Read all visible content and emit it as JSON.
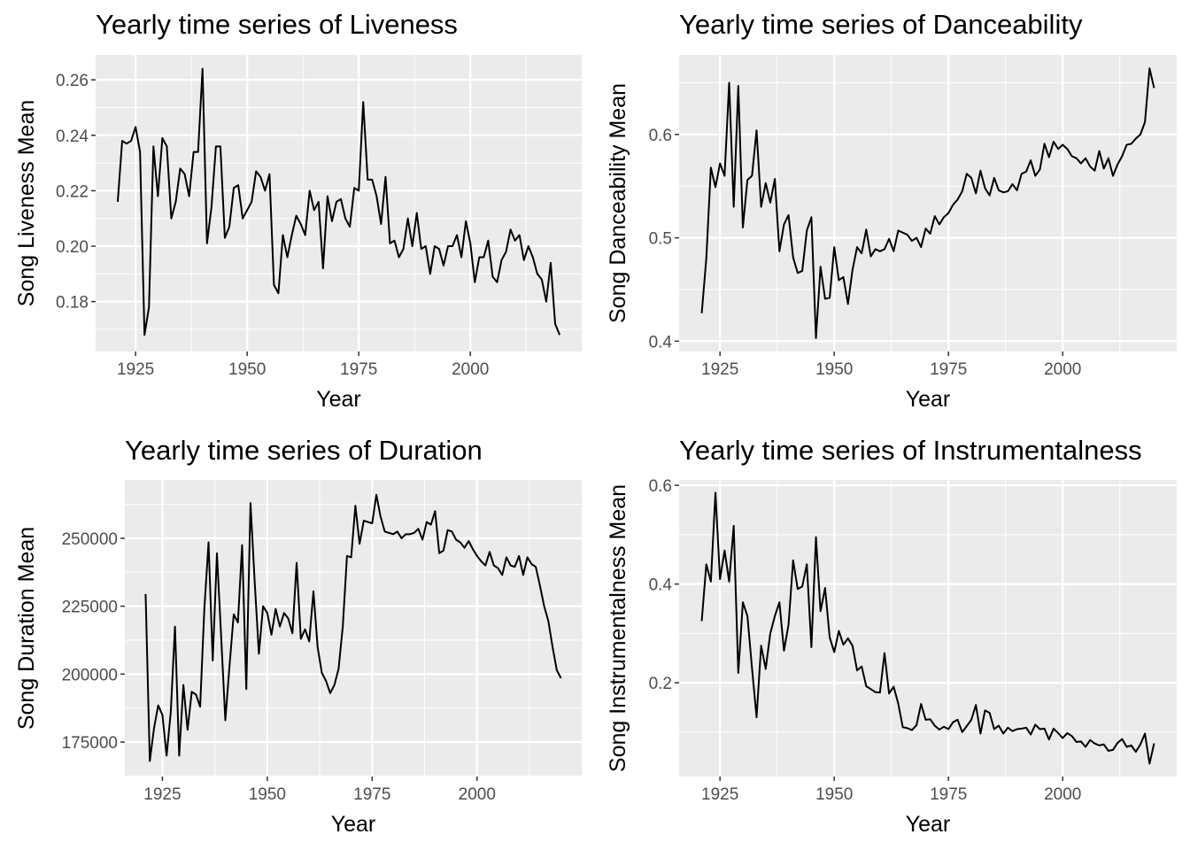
{
  "chart_data": [
    {
      "type": "line",
      "title": "Yearly time series of Liveness",
      "xlabel": "Year",
      "ylabel": "Song Liveness Mean",
      "color": "#000000",
      "grid": true,
      "x": [
        1921,
        1922,
        1923,
        1924,
        1925,
        1926,
        1927,
        1928,
        1929,
        1930,
        1931,
        1932,
        1933,
        1934,
        1935,
        1936,
        1937,
        1938,
        1939,
        1940,
        1941,
        1942,
        1943,
        1944,
        1945,
        1946,
        1947,
        1948,
        1949,
        1950,
        1951,
        1952,
        1953,
        1954,
        1955,
        1956,
        1957,
        1958,
        1959,
        1960,
        1961,
        1962,
        1963,
        1964,
        1965,
        1966,
        1967,
        1968,
        1969,
        1970,
        1971,
        1972,
        1973,
        1974,
        1975,
        1976,
        1977,
        1978,
        1979,
        1980,
        1981,
        1982,
        1983,
        1984,
        1985,
        1986,
        1987,
        1988,
        1989,
        1990,
        1991,
        1992,
        1993,
        1994,
        1995,
        1996,
        1997,
        1998,
        1999,
        2000,
        2001,
        2002,
        2003,
        2004,
        2005,
        2006,
        2007,
        2008,
        2009,
        2010,
        2011,
        2012,
        2013,
        2014,
        2015,
        2016,
        2017,
        2018,
        2019,
        2020
      ],
      "values": [
        0.216,
        0.238,
        0.237,
        0.238,
        0.243,
        0.234,
        0.168,
        0.178,
        0.236,
        0.218,
        0.239,
        0.236,
        0.21,
        0.216,
        0.228,
        0.226,
        0.218,
        0.234,
        0.234,
        0.264,
        0.201,
        0.214,
        0.236,
        0.236,
        0.203,
        0.207,
        0.221,
        0.222,
        0.21,
        0.213,
        0.216,
        0.227,
        0.225,
        0.22,
        0.226,
        0.186,
        0.183,
        0.204,
        0.196,
        0.204,
        0.211,
        0.208,
        0.204,
        0.22,
        0.213,
        0.216,
        0.192,
        0.218,
        0.209,
        0.216,
        0.217,
        0.21,
        0.207,
        0.221,
        0.22,
        0.252,
        0.224,
        0.224,
        0.218,
        0.208,
        0.225,
        0.201,
        0.202,
        0.196,
        0.199,
        0.21,
        0.2,
        0.212,
        0.199,
        0.2,
        0.19,
        0.2,
        0.199,
        0.193,
        0.2,
        0.2,
        0.204,
        0.196,
        0.209,
        0.201,
        0.187,
        0.196,
        0.196,
        0.202,
        0.189,
        0.187,
        0.195,
        0.198,
        0.206,
        0.202,
        0.204,
        0.195,
        0.2,
        0.196,
        0.19,
        0.188,
        0.18,
        0.194,
        0.172,
        0.168
      ],
      "xlim": [
        1916.05,
        2024.95
      ],
      "xticks": [
        1925,
        1950,
        1975,
        2000
      ],
      "ylim": [
        0.162,
        0.269
      ],
      "yticks": [
        0.18,
        {
          "value": 0.2,
          "label": "0.20"
        },
        0.22,
        0.24,
        0.26
      ]
    },
    {
      "type": "line",
      "title": "Yearly time series of Danceability",
      "xlabel": "Year",
      "ylabel": "Song Danceability Mean",
      "color": "#000000",
      "grid": true,
      "x": [
        1921,
        1922,
        1923,
        1924,
        1925,
        1926,
        1927,
        1928,
        1929,
        1930,
        1931,
        1932,
        1933,
        1934,
        1935,
        1936,
        1937,
        1938,
        1939,
        1940,
        1941,
        1942,
        1943,
        1944,
        1945,
        1946,
        1947,
        1948,
        1949,
        1950,
        1951,
        1952,
        1953,
        1954,
        1955,
        1956,
        1957,
        1958,
        1959,
        1960,
        1961,
        1962,
        1963,
        1964,
        1965,
        1966,
        1967,
        1968,
        1969,
        1970,
        1971,
        1972,
        1973,
        1974,
        1975,
        1976,
        1977,
        1978,
        1979,
        1980,
        1981,
        1982,
        1983,
        1984,
        1985,
        1986,
        1987,
        1988,
        1989,
        1990,
        1991,
        1992,
        1993,
        1994,
        1995,
        1996,
        1997,
        1998,
        1999,
        2000,
        2001,
        2002,
        2003,
        2004,
        2005,
        2006,
        2007,
        2008,
        2009,
        2010,
        2011,
        2012,
        2013,
        2014,
        2015,
        2016,
        2017,
        2018,
        2019,
        2020
      ],
      "values": [
        0.427,
        0.48,
        0.568,
        0.549,
        0.572,
        0.56,
        0.65,
        0.53,
        0.647,
        0.51,
        0.556,
        0.56,
        0.604,
        0.53,
        0.553,
        0.534,
        0.557,
        0.487,
        0.513,
        0.522,
        0.481,
        0.466,
        0.468,
        0.507,
        0.52,
        0.403,
        0.472,
        0.441,
        0.442,
        0.491,
        0.459,
        0.462,
        0.436,
        0.469,
        0.491,
        0.485,
        0.508,
        0.482,
        0.489,
        0.487,
        0.489,
        0.499,
        0.487,
        0.507,
        0.505,
        0.503,
        0.497,
        0.5,
        0.491,
        0.509,
        0.504,
        0.521,
        0.513,
        0.52,
        0.524,
        0.532,
        0.537,
        0.545,
        0.562,
        0.558,
        0.543,
        0.565,
        0.548,
        0.541,
        0.558,
        0.546,
        0.544,
        0.545,
        0.552,
        0.546,
        0.562,
        0.564,
        0.575,
        0.56,
        0.566,
        0.591,
        0.578,
        0.593,
        0.586,
        0.59,
        0.586,
        0.579,
        0.577,
        0.572,
        0.577,
        0.569,
        0.565,
        0.584,
        0.567,
        0.577,
        0.56,
        0.571,
        0.579,
        0.59,
        0.591,
        0.596,
        0.6,
        0.612,
        0.664,
        0.645
      ],
      "xlim": [
        1916.05,
        2024.95
      ],
      "xticks": [
        1925,
        1950,
        1975,
        2000
      ],
      "ylim": [
        0.39,
        0.677
      ],
      "yticks": [
        0.4,
        0.5,
        0.6
      ]
    },
    {
      "type": "line",
      "title": "Yearly time series of Duration",
      "xlabel": "Year",
      "ylabel": "Song Duration Mean",
      "color": "#000000",
      "grid": true,
      "x": [
        1921,
        1922,
        1923,
        1924,
        1925,
        1926,
        1927,
        1928,
        1929,
        1930,
        1931,
        1932,
        1933,
        1934,
        1935,
        1936,
        1937,
        1938,
        1939,
        1940,
        1941,
        1942,
        1943,
        1944,
        1945,
        1946,
        1947,
        1948,
        1949,
        1950,
        1951,
        1952,
        1953,
        1954,
        1955,
        1956,
        1957,
        1958,
        1959,
        1960,
        1961,
        1962,
        1963,
        1964,
        1965,
        1966,
        1967,
        1968,
        1969,
        1970,
        1971,
        1972,
        1973,
        1974,
        1975,
        1976,
        1977,
        1978,
        1979,
        1980,
        1981,
        1982,
        1983,
        1984,
        1985,
        1986,
        1987,
        1988,
        1989,
        1990,
        1991,
        1992,
        1993,
        1994,
        1995,
        1996,
        1997,
        1998,
        1999,
        2000,
        2001,
        2002,
        2003,
        2004,
        2005,
        2006,
        2007,
        2008,
        2009,
        2010,
        2011,
        2012,
        2013,
        2014,
        2015,
        2016,
        2017,
        2018,
        2019,
        2020
      ],
      "values": [
        229500,
        168000,
        180000,
        188500,
        185000,
        170000,
        186000,
        217500,
        170000,
        196000,
        179500,
        193500,
        192500,
        188000,
        224000,
        248500,
        205000,
        244500,
        214000,
        183000,
        203000,
        222000,
        219000,
        247500,
        194500,
        263000,
        234000,
        207500,
        225000,
        222500,
        214500,
        224000,
        217500,
        222500,
        220500,
        215000,
        241000,
        213000,
        216500,
        212000,
        230500,
        210000,
        200500,
        197500,
        193000,
        196000,
        202000,
        217500,
        243500,
        243000,
        262000,
        248000,
        256500,
        256000,
        255500,
        266000,
        258000,
        252500,
        252000,
        251500,
        252500,
        250000,
        251500,
        251500,
        252000,
        253500,
        249500,
        256000,
        255000,
        260000,
        244500,
        245500,
        253000,
        252500,
        249500,
        248500,
        246500,
        249000,
        246000,
        243500,
        241500,
        240000,
        245000,
        240000,
        239000,
        236500,
        243000,
        240000,
        239500,
        243500,
        236500,
        243000,
        240500,
        239500,
        232500,
        225000,
        219500,
        210000,
        201500,
        198500
      ],
      "xlim": [
        1916.05,
        2024.95
      ],
      "xticks": [
        1925,
        1950,
        1975,
        2000
      ],
      "ylim": [
        162300,
        271500
      ],
      "yticks": [
        175000,
        200000,
        225000,
        250000
      ]
    },
    {
      "type": "line",
      "title": "Yearly time series of Instrumentalness",
      "xlabel": "Year",
      "ylabel": "Song Instrumentalness Mean",
      "color": "#000000",
      "grid": true,
      "x": [
        1921,
        1922,
        1923,
        1924,
        1925,
        1926,
        1927,
        1928,
        1929,
        1930,
        1931,
        1932,
        1933,
        1934,
        1935,
        1936,
        1937,
        1938,
        1939,
        1940,
        1941,
        1942,
        1943,
        1944,
        1945,
        1946,
        1947,
        1948,
        1949,
        1950,
        1951,
        1952,
        1953,
        1954,
        1955,
        1956,
        1957,
        1958,
        1959,
        1960,
        1961,
        1962,
        1963,
        1964,
        1965,
        1966,
        1967,
        1968,
        1969,
        1970,
        1971,
        1972,
        1973,
        1974,
        1975,
        1976,
        1977,
        1978,
        1979,
        1980,
        1981,
        1982,
        1983,
        1984,
        1985,
        1986,
        1987,
        1988,
        1989,
        1990,
        1991,
        1992,
        1993,
        1994,
        1995,
        1996,
        1997,
        1998,
        1999,
        2000,
        2001,
        2002,
        2003,
        2004,
        2005,
        2006,
        2007,
        2008,
        2009,
        2010,
        2011,
        2012,
        2013,
        2014,
        2015,
        2016,
        2017,
        2018,
        2019,
        2020
      ],
      "values": [
        0.325,
        0.44,
        0.405,
        0.585,
        0.41,
        0.468,
        0.405,
        0.518,
        0.22,
        0.363,
        0.335,
        0.23,
        0.13,
        0.275,
        0.228,
        0.3,
        0.335,
        0.363,
        0.265,
        0.318,
        0.448,
        0.39,
        0.395,
        0.44,
        0.272,
        0.495,
        0.345,
        0.392,
        0.292,
        0.262,
        0.305,
        0.277,
        0.29,
        0.275,
        0.225,
        0.233,
        0.193,
        0.187,
        0.181,
        0.18,
        0.26,
        0.178,
        0.192,
        0.158,
        0.11,
        0.108,
        0.104,
        0.114,
        0.157,
        0.125,
        0.126,
        0.113,
        0.105,
        0.111,
        0.106,
        0.12,
        0.125,
        0.1,
        0.112,
        0.125,
        0.155,
        0.097,
        0.144,
        0.139,
        0.106,
        0.113,
        0.097,
        0.109,
        0.102,
        0.106,
        0.107,
        0.109,
        0.095,
        0.115,
        0.106,
        0.107,
        0.085,
        0.107,
        0.098,
        0.088,
        0.098,
        0.092,
        0.08,
        0.081,
        0.07,
        0.084,
        0.077,
        0.073,
        0.075,
        0.062,
        0.064,
        0.078,
        0.086,
        0.07,
        0.073,
        0.06,
        0.075,
        0.097,
        0.036,
        0.077
      ],
      "xlim": [
        1916.05,
        2024.95
      ],
      "xticks": [
        1925,
        1950,
        1975,
        2000
      ],
      "ylim": [
        0.01,
        0.611
      ],
      "yticks": [
        0.2,
        0.4,
        0.6
      ]
    }
  ]
}
